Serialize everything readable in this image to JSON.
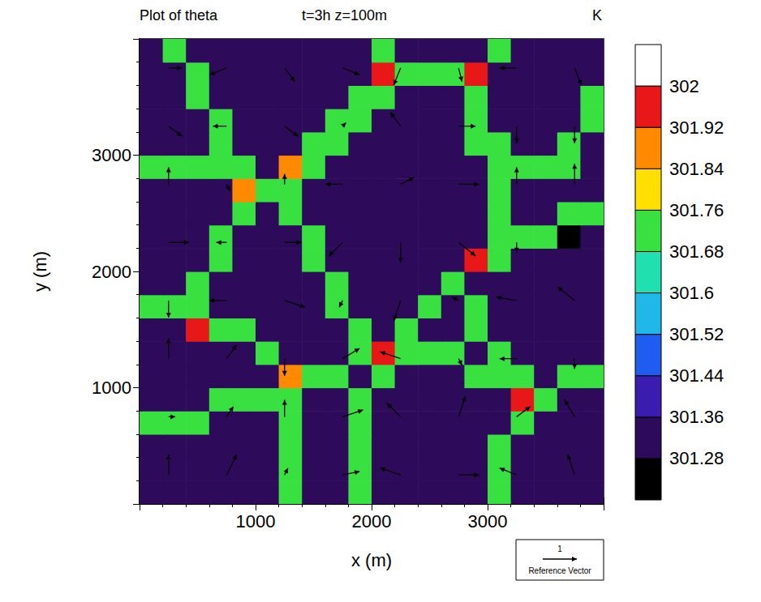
{
  "chart_data": {
    "type": "heatmap",
    "title": "Plot of theta",
    "subtitle": "t=3h z=100m",
    "colorbar_label": "K",
    "x_label": "x (m)",
    "y_label": "y (m)",
    "xlim": [
      0,
      4000
    ],
    "ylim": [
      0,
      4000
    ],
    "xticks": [
      1000,
      2000,
      3000
    ],
    "yticks": [
      1000,
      2000,
      3000
    ],
    "cell_x": [
      100,
      300,
      500,
      700,
      900,
      1100,
      1300,
      1500,
      1700,
      1900,
      2100,
      2300,
      2500,
      2700,
      2900,
      3100,
      3300,
      3500,
      3700,
      3900
    ],
    "cell_y": [
      100,
      300,
      500,
      700,
      900,
      1100,
      1300,
      1500,
      1700,
      1900,
      2100,
      2300,
      2500,
      2700,
      2900,
      3100,
      3300,
      3500,
      3700,
      3900
    ],
    "theta": [
      [
        301.33,
        301.33,
        301.33,
        301.33,
        301.33,
        301.33,
        301.74,
        301.33,
        301.33,
        301.74,
        301.33,
        301.33,
        301.33,
        301.33,
        301.33,
        301.74,
        301.33,
        301.33,
        301.33,
        301.33
      ],
      [
        301.33,
        301.33,
        301.33,
        301.33,
        301.33,
        301.33,
        301.74,
        301.33,
        301.33,
        301.74,
        301.33,
        301.33,
        301.33,
        301.33,
        301.33,
        301.74,
        301.33,
        301.33,
        301.33,
        301.33
      ],
      [
        301.33,
        301.33,
        301.33,
        301.33,
        301.33,
        301.33,
        301.74,
        301.33,
        301.33,
        301.74,
        301.33,
        301.33,
        301.33,
        301.33,
        301.33,
        301.74,
        301.33,
        301.33,
        301.33,
        301.33
      ],
      [
        301.74,
        301.74,
        301.74,
        301.33,
        301.33,
        301.33,
        301.74,
        301.33,
        301.33,
        301.74,
        301.33,
        301.33,
        301.33,
        301.33,
        301.33,
        301.33,
        301.74,
        301.33,
        301.33,
        301.33
      ],
      [
        301.33,
        301.33,
        301.33,
        301.74,
        301.74,
        301.74,
        301.74,
        301.33,
        301.33,
        301.74,
        301.33,
        301.33,
        301.33,
        301.33,
        301.33,
        301.33,
        301.95,
        301.74,
        301.33,
        301.33
      ],
      [
        301.33,
        301.33,
        301.33,
        301.33,
        301.33,
        301.33,
        301.86,
        301.74,
        301.74,
        301.33,
        301.74,
        301.33,
        301.33,
        301.33,
        301.74,
        301.74,
        301.74,
        301.33,
        301.74,
        301.74
      ],
      [
        301.33,
        301.33,
        301.33,
        301.33,
        301.33,
        301.74,
        301.33,
        301.33,
        301.33,
        301.74,
        301.95,
        301.74,
        301.74,
        301.74,
        301.33,
        301.74,
        301.33,
        301.33,
        301.33,
        301.33
      ],
      [
        301.33,
        301.33,
        301.95,
        301.74,
        301.74,
        301.33,
        301.33,
        301.33,
        301.33,
        301.74,
        301.33,
        301.74,
        301.33,
        301.33,
        301.74,
        301.33,
        301.33,
        301.33,
        301.33,
        301.33
      ],
      [
        301.74,
        301.74,
        301.74,
        301.33,
        301.33,
        301.33,
        301.33,
        301.33,
        301.74,
        301.33,
        301.33,
        301.33,
        301.74,
        301.33,
        301.74,
        301.33,
        301.33,
        301.33,
        301.33,
        301.33
      ],
      [
        301.33,
        301.33,
        301.74,
        301.33,
        301.33,
        301.33,
        301.33,
        301.33,
        301.74,
        301.33,
        301.33,
        301.33,
        301.33,
        301.74,
        301.33,
        301.33,
        301.33,
        301.33,
        301.33,
        301.33
      ],
      [
        301.33,
        301.33,
        301.33,
        301.74,
        301.33,
        301.33,
        301.33,
        301.74,
        301.33,
        301.33,
        301.33,
        301.33,
        301.33,
        301.33,
        301.95,
        301.74,
        301.33,
        301.33,
        301.33,
        301.33
      ],
      [
        301.33,
        301.33,
        301.33,
        301.74,
        301.33,
        301.33,
        301.33,
        301.74,
        301.33,
        301.33,
        301.33,
        301.33,
        301.33,
        301.33,
        301.33,
        301.74,
        301.74,
        301.74,
        301.26,
        301.33
      ],
      [
        301.33,
        301.33,
        301.33,
        301.33,
        301.74,
        301.33,
        301.74,
        301.33,
        301.33,
        301.33,
        301.29,
        301.29,
        301.33,
        301.33,
        301.33,
        301.74,
        301.33,
        301.33,
        301.74,
        301.74
      ],
      [
        301.33,
        301.33,
        301.33,
        301.33,
        301.86,
        301.74,
        301.74,
        301.33,
        301.33,
        301.33,
        301.33,
        301.33,
        301.33,
        301.33,
        301.33,
        301.74,
        301.33,
        301.33,
        301.33,
        301.33
      ],
      [
        301.74,
        301.74,
        301.74,
        301.74,
        301.74,
        301.33,
        301.86,
        301.74,
        301.33,
        301.33,
        301.33,
        301.33,
        301.33,
        301.33,
        301.33,
        301.74,
        301.74,
        301.74,
        301.74,
        301.33
      ],
      [
        301.33,
        301.33,
        301.33,
        301.74,
        301.33,
        301.33,
        301.33,
        301.74,
        301.74,
        301.33,
        301.33,
        301.33,
        301.33,
        301.33,
        301.74,
        301.74,
        301.33,
        301.33,
        301.74,
        301.33
      ],
      [
        301.33,
        301.33,
        301.33,
        301.74,
        301.33,
        301.33,
        301.33,
        301.33,
        301.74,
        301.74,
        301.33,
        301.33,
        301.33,
        301.33,
        301.74,
        301.33,
        301.33,
        301.33,
        301.33,
        301.74
      ],
      [
        301.33,
        301.33,
        301.74,
        301.33,
        301.33,
        301.33,
        301.33,
        301.33,
        301.33,
        301.74,
        301.74,
        301.33,
        301.33,
        301.33,
        301.74,
        301.33,
        301.33,
        301.33,
        301.33,
        301.74
      ],
      [
        301.33,
        301.33,
        301.74,
        301.33,
        301.33,
        301.33,
        301.33,
        301.33,
        301.33,
        301.33,
        301.95,
        301.74,
        301.74,
        301.74,
        301.95,
        301.33,
        301.33,
        301.33,
        301.33,
        301.33
      ],
      [
        301.33,
        301.74,
        301.33,
        301.33,
        301.33,
        301.33,
        301.33,
        301.33,
        301.33,
        301.33,
        301.74,
        301.33,
        301.33,
        301.33,
        301.33,
        301.74,
        301.33,
        301.33,
        301.33,
        301.33
      ]
    ],
    "colorbar_range": [
      301.2,
      302.08
    ],
    "colorbar_ticks": [
      301.28,
      301.36,
      301.44,
      301.52,
      301.6,
      301.68,
      301.76,
      301.84,
      301.92,
      302
    ],
    "colorbar_colors": [
      "#000000",
      "#2d0b5a",
      "#3b1cb0",
      "#1f5cf0",
      "#20b8e8",
      "#20e0b0",
      "#38e040",
      "#ffe000",
      "#ff8a00",
      "#e81818",
      "#ffffff"
    ],
    "vectors": [
      [
        250,
        250,
        0,
        0.6
      ],
      [
        750,
        250,
        0.3,
        0.6
      ],
      [
        1250,
        250,
        0.1,
        0.2
      ],
      [
        1750,
        250,
        0.5,
        0.1
      ],
      [
        2250,
        250,
        -0.6,
        0.2
      ],
      [
        2750,
        250,
        0.6,
        0
      ],
      [
        3250,
        250,
        -0.5,
        0.2
      ],
      [
        3750,
        250,
        -0.2,
        0.6
      ],
      [
        250,
        750,
        0.2,
        0
      ],
      [
        750,
        750,
        0.2,
        0.3
      ],
      [
        1250,
        750,
        0,
        0.5
      ],
      [
        1750,
        750,
        0.6,
        0.2
      ],
      [
        2250,
        750,
        -0.4,
        0.4
      ],
      [
        2750,
        750,
        0.2,
        0.6
      ],
      [
        3250,
        750,
        0.4,
        0.3
      ],
      [
        3750,
        750,
        -0.3,
        0.5
      ],
      [
        250,
        1250,
        0,
        0.6
      ],
      [
        750,
        1250,
        0.3,
        0.4
      ],
      [
        1250,
        1250,
        0,
        -0.5
      ],
      [
        1750,
        1250,
        0.5,
        0.3
      ],
      [
        2250,
        1250,
        -0.6,
        0.2
      ],
      [
        2750,
        1250,
        0.1,
        -0.2
      ],
      [
        3250,
        1250,
        -0.5,
        0
      ],
      [
        3750,
        1250,
        0,
        -0.3
      ],
      [
        250,
        1750,
        0,
        -0.5
      ],
      [
        750,
        1750,
        -0.5,
        0
      ],
      [
        1250,
        1750,
        0.6,
        -0.2
      ],
      [
        1750,
        1750,
        -0.1,
        -0.2
      ],
      [
        2250,
        1750,
        -0.2,
        -0.6
      ],
      [
        2750,
        1750,
        -0.2,
        0.1
      ],
      [
        3250,
        1750,
        -0.6,
        0.1
      ],
      [
        3750,
        1750,
        -0.5,
        0.4
      ],
      [
        250,
        2250,
        0.6,
        0
      ],
      [
        750,
        2250,
        -0.3,
        0
      ],
      [
        1250,
        2250,
        0.5,
        0
      ],
      [
        1750,
        2250,
        -0.4,
        -0.4
      ],
      [
        2250,
        2250,
        0,
        -0.6
      ],
      [
        2750,
        2250,
        0.5,
        -0.4
      ],
      [
        3250,
        2250,
        0,
        -0.3
      ],
      [
        3750,
        2250,
        0,
        0.5
      ],
      [
        250,
        2750,
        0,
        0.5
      ],
      [
        750,
        2750,
        0.1,
        -0.2
      ],
      [
        1250,
        2750,
        0,
        0.3
      ],
      [
        1750,
        2750,
        -0.5,
        0
      ],
      [
        2250,
        2750,
        0.4,
        0.2
      ],
      [
        2750,
        2750,
        0.6,
        0
      ],
      [
        3250,
        2750,
        0,
        0.5
      ],
      [
        3750,
        2750,
        0,
        0.6
      ],
      [
        250,
        3250,
        0.4,
        -0.3
      ],
      [
        750,
        3250,
        -0.4,
        0
      ],
      [
        1250,
        3250,
        0.4,
        -0.3
      ],
      [
        1750,
        3250,
        0.1,
        0.1
      ],
      [
        2250,
        3250,
        -0.3,
        0.4
      ],
      [
        2750,
        3250,
        0.5,
        0
      ],
      [
        3250,
        3250,
        0,
        -0.5
      ],
      [
        3750,
        3250,
        0,
        -0.5
      ],
      [
        250,
        3750,
        0.4,
        0
      ],
      [
        750,
        3750,
        -0.5,
        -0.2
      ],
      [
        1250,
        3750,
        0.3,
        -0.4
      ],
      [
        1750,
        3750,
        0.5,
        -0.2
      ],
      [
        2250,
        3750,
        -0.2,
        -0.5
      ],
      [
        2750,
        3750,
        0.1,
        -0.4
      ],
      [
        3250,
        3750,
        -0.5,
        0
      ],
      [
        3750,
        3750,
        0.2,
        -0.5
      ]
    ],
    "reference_vector": {
      "value": 1,
      "label": "Reference Vector"
    }
  }
}
